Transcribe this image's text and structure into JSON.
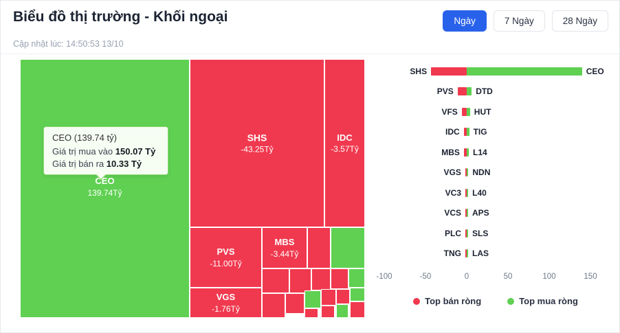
{
  "colors": {
    "sell_red": "#f0394f",
    "buy_green": "#5fd052",
    "accent_blue": "#2962ea"
  },
  "header": {
    "title": "Biểu đồ thị trường - Khối ngoại",
    "updated_at": "Cập nhật lúc: 14:50:53 13/10",
    "range_buttons": [
      {
        "label": "Ngày",
        "active": true
      },
      {
        "label": "7 Ngày",
        "active": false
      },
      {
        "label": "28 Ngày",
        "active": false
      }
    ]
  },
  "treemap": {
    "blocks": [
      {
        "ticker": "CEO",
        "value": "139.74Tỷ"
      },
      {
        "ticker": "SHS",
        "value": "-43.25Tỷ"
      },
      {
        "ticker": "IDC",
        "value": "-3.57Tỷ"
      },
      {
        "ticker": "PVS",
        "value": "-11.00Tỷ"
      },
      {
        "ticker": "MBS",
        "value": "-3.44Tỷ"
      },
      {
        "ticker": "VGS",
        "value": "-1.76Tỷ"
      }
    ],
    "tooltip": {
      "title": "CEO (139.74 tỷ)",
      "buy_label": "Giá trị mua vào",
      "buy_value": "150.07 Tỷ",
      "sell_label": "Giá trị bán ra",
      "sell_value": "10.33 Tỷ"
    }
  },
  "legend": {
    "sell": "Top bán ròng",
    "buy": "Top mua ròng"
  },
  "chart_data": [
    {
      "type": "treemap",
      "title": "Biểu đồ thị trường - Khối ngoại",
      "unit": "Tỷ VND",
      "items": [
        {
          "ticker": "CEO",
          "value": 139.74
        },
        {
          "ticker": "SHS",
          "value": -43.25
        },
        {
          "ticker": "PVS",
          "value": -11.0
        },
        {
          "ticker": "IDC",
          "value": -3.57
        },
        {
          "ticker": "MBS",
          "value": -3.44
        },
        {
          "ticker": "VGS",
          "value": -1.76
        }
      ]
    },
    {
      "type": "bar",
      "orientation": "horizontal-diverging",
      "xlim": [
        -100,
        150
      ],
      "axis_ticks": [
        -100,
        -50,
        0,
        50,
        100,
        150
      ],
      "legend": [
        "Top bán ròng",
        "Top mua ròng"
      ],
      "pairs": [
        {
          "sell_ticker": "SHS",
          "sell_value": -43.25,
          "buy_ticker": "CEO",
          "buy_value": 139.74
        },
        {
          "sell_ticker": "PVS",
          "sell_value": -11.0,
          "buy_ticker": "DTD",
          "buy_value": 6
        },
        {
          "sell_ticker": "VFS",
          "sell_value": -6,
          "buy_ticker": "HUT",
          "buy_value": 4
        },
        {
          "sell_ticker": "IDC",
          "sell_value": -3.57,
          "buy_ticker": "TIG",
          "buy_value": 3
        },
        {
          "sell_ticker": "MBS",
          "sell_value": -3.44,
          "buy_ticker": "L14",
          "buy_value": 2.5
        },
        {
          "sell_ticker": "VGS",
          "sell_value": -1.76,
          "buy_ticker": "NDN",
          "buy_value": 2
        },
        {
          "sell_ticker": "VC3",
          "sell_value": -1.5,
          "buy_ticker": "L40",
          "buy_value": 1.8
        },
        {
          "sell_ticker": "VCS",
          "sell_value": -1.3,
          "buy_ticker": "APS",
          "buy_value": 1.5
        },
        {
          "sell_ticker": "PLC",
          "sell_value": -1.1,
          "buy_ticker": "SLS",
          "buy_value": 1.2
        },
        {
          "sell_ticker": "TNG",
          "sell_value": -0.9,
          "buy_ticker": "LAS",
          "buy_value": 1.0
        }
      ]
    }
  ]
}
